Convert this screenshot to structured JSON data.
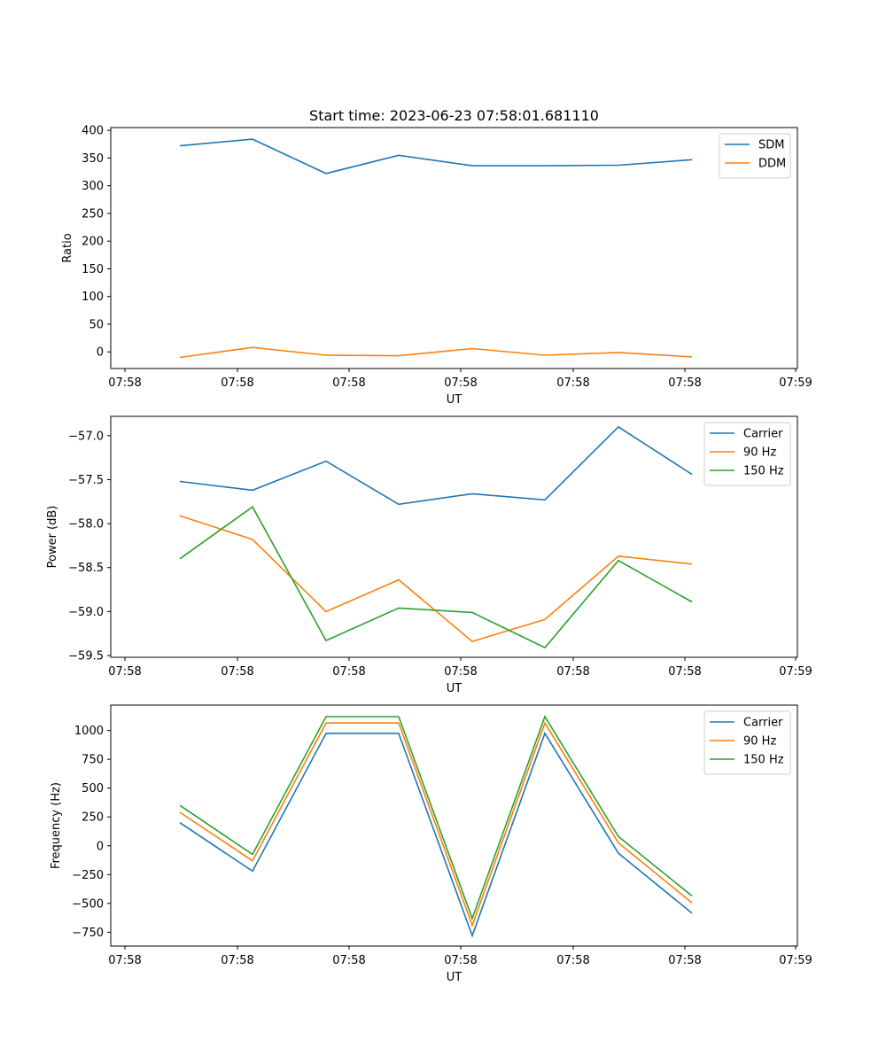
{
  "chart_data": [
    {
      "type": "line",
      "title": "Start time: 2023-06-23 07:58:01.681110",
      "xlabel": "UT",
      "ylabel": "Ratio",
      "x_tick_labels": [
        "07:58",
        "07:58",
        "07:58",
        "07:58",
        "07:58",
        "07:58",
        "07:59"
      ],
      "y_ticks": [
        0,
        50,
        100,
        150,
        200,
        250,
        300,
        350,
        400
      ],
      "ylim": [
        -30,
        405
      ],
      "legend_loc": "upper right",
      "series": [
        {
          "name": "SDM",
          "color": "#1f77b4",
          "values": [
            372,
            384,
            322,
            355,
            336,
            336,
            337,
            347
          ]
        },
        {
          "name": "DDM",
          "color": "#ff7f0e",
          "values": [
            -10,
            8,
            -6,
            -7,
            6,
            -6,
            -1,
            -9
          ]
        }
      ]
    },
    {
      "type": "line",
      "title": "",
      "xlabel": "UT",
      "ylabel": "Power (dB)",
      "x_tick_labels": [
        "07:58",
        "07:58",
        "07:58",
        "07:58",
        "07:58",
        "07:58",
        "07:59"
      ],
      "y_ticks": [
        -57.0,
        -57.5,
        -58.0,
        -58.5,
        -59.0,
        -59.5
      ],
      "y_tick_labels": [
        "−57.0",
        "−57.5",
        "−58.0",
        "−58.5",
        "−59.0",
        "−59.5"
      ],
      "ylim": [
        -59.52,
        -56.78
      ],
      "legend_loc": "upper right",
      "series": [
        {
          "name": "Carrier",
          "color": "#1f77b4",
          "values": [
            -57.52,
            -57.62,
            -57.29,
            -57.78,
            -57.66,
            -57.73,
            -56.9,
            -57.44
          ]
        },
        {
          "name": "90 Hz",
          "color": "#ff7f0e",
          "values": [
            -57.91,
            -58.18,
            -59.0,
            -58.64,
            -59.34,
            -59.09,
            -58.37,
            -58.46
          ]
        },
        {
          "name": "150 Hz",
          "color": "#2ca02c",
          "values": [
            -58.4,
            -57.81,
            -59.33,
            -58.96,
            -59.01,
            -59.41,
            -58.42,
            -58.89
          ]
        }
      ]
    },
    {
      "type": "line",
      "title": "",
      "xlabel": "UT",
      "ylabel": "Frequency (Hz)",
      "x_tick_labels": [
        "07:58",
        "07:58",
        "07:58",
        "07:58",
        "07:58",
        "07:58",
        "07:59"
      ],
      "y_ticks": [
        -750,
        -500,
        -250,
        0,
        250,
        500,
        750,
        1000
      ],
      "y_tick_labels": [
        "−750",
        "−500",
        "−250",
        "0",
        "250",
        "500",
        "750",
        "1000"
      ],
      "ylim": [
        -870,
        1220
      ],
      "legend_loc": "upper right",
      "series": [
        {
          "name": "Carrier",
          "color": "#1f77b4",
          "values": [
            200,
            -220,
            975,
            975,
            -780,
            975,
            -65,
            -585
          ]
        },
        {
          "name": "90 Hz",
          "color": "#ff7f0e",
          "values": [
            290,
            -130,
            1065,
            1065,
            -690,
            1065,
            25,
            -495
          ]
        },
        {
          "name": "150 Hz",
          "color": "#2ca02c",
          "values": [
            350,
            -75,
            1120,
            1120,
            -630,
            1120,
            80,
            -435
          ]
        }
      ]
    }
  ]
}
